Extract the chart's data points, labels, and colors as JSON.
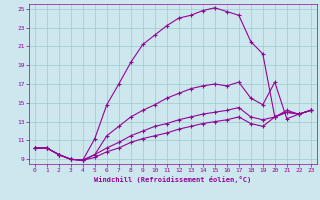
{
  "xlabel": "Windchill (Refroidissement éolien,°C)",
  "bg_color": "#cce8ee",
  "line_color": "#990099",
  "grid_color": "#99cccc",
  "xlim": [
    -0.5,
    23.5
  ],
  "ylim": [
    8.5,
    25.5
  ],
  "xticks": [
    0,
    1,
    2,
    3,
    4,
    5,
    6,
    7,
    8,
    9,
    10,
    11,
    12,
    13,
    14,
    15,
    16,
    17,
    18,
    19,
    20,
    21,
    22,
    23
  ],
  "yticks": [
    9,
    11,
    13,
    15,
    17,
    19,
    21,
    23,
    25
  ],
  "line1_x": [
    0,
    1,
    2,
    3,
    4,
    5,
    6,
    7,
    8,
    9,
    10,
    11,
    12,
    13,
    14,
    15,
    16,
    17,
    18,
    19,
    20,
    21,
    22,
    23
  ],
  "line1_y": [
    10.2,
    10.2,
    9.5,
    9.0,
    8.9,
    11.2,
    14.8,
    17.0,
    19.3,
    21.2,
    22.2,
    23.2,
    24.0,
    24.3,
    24.8,
    25.1,
    24.7,
    24.3,
    21.5,
    20.2,
    13.5,
    14.2,
    13.8,
    14.2
  ],
  "line2_x": [
    0,
    1,
    2,
    3,
    4,
    5,
    6,
    7,
    8,
    9,
    10,
    11,
    12,
    13,
    14,
    15,
    16,
    17,
    18,
    19,
    20,
    21,
    22,
    23
  ],
  "line2_y": [
    10.2,
    10.2,
    9.5,
    9.0,
    8.9,
    9.5,
    11.5,
    12.5,
    13.5,
    14.2,
    14.8,
    15.5,
    16.0,
    16.5,
    16.8,
    17.0,
    16.8,
    17.2,
    15.5,
    14.8,
    17.2,
    13.3,
    13.8,
    14.2
  ],
  "line3_x": [
    0,
    1,
    2,
    3,
    4,
    5,
    6,
    7,
    8,
    9,
    10,
    11,
    12,
    13,
    14,
    15,
    16,
    17,
    18,
    19,
    20,
    21,
    22,
    23
  ],
  "line3_y": [
    10.2,
    10.2,
    9.5,
    9.0,
    8.9,
    9.5,
    10.2,
    10.8,
    11.5,
    12.0,
    12.5,
    12.8,
    13.2,
    13.5,
    13.8,
    14.0,
    14.2,
    14.5,
    13.5,
    13.2,
    13.5,
    14.0,
    13.8,
    14.2
  ],
  "line4_x": [
    0,
    1,
    2,
    3,
    4,
    5,
    6,
    7,
    8,
    9,
    10,
    11,
    12,
    13,
    14,
    15,
    16,
    17,
    18,
    19,
    20,
    21,
    22,
    23
  ],
  "line4_y": [
    10.2,
    10.2,
    9.5,
    9.0,
    8.9,
    9.2,
    9.8,
    10.2,
    10.8,
    11.2,
    11.5,
    11.8,
    12.2,
    12.5,
    12.8,
    13.0,
    13.2,
    13.5,
    12.8,
    12.5,
    13.5,
    14.0,
    13.8,
    14.2
  ]
}
